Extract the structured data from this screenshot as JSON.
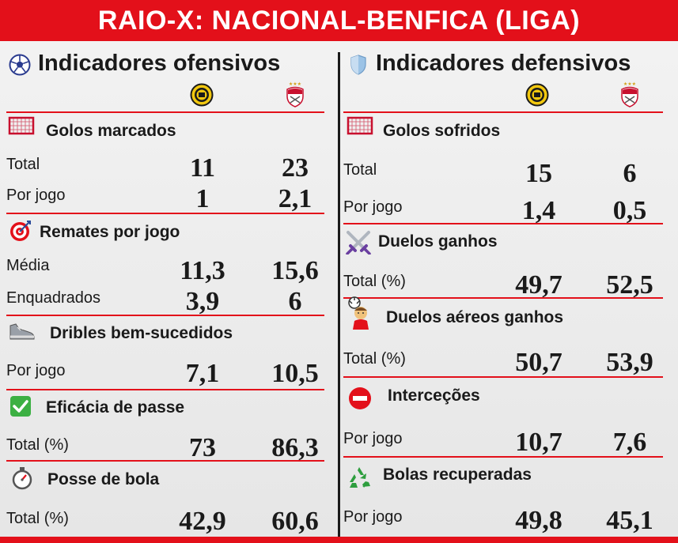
{
  "title": "RAIO-X: NACIONAL-BENFICA (LIGA)",
  "colors": {
    "accent": "#e3101a",
    "text": "#1a1a1a"
  },
  "left": {
    "title": "Indicadores ofensivos",
    "icon": "soccer-ball-icon",
    "sections": [
      {
        "title": "Golos marcados",
        "icon": "goal-net-icon",
        "rows": [
          {
            "label": "Total",
            "nacional": "11",
            "benfica": "23"
          },
          {
            "label": "Por jogo",
            "nacional": "1",
            "benfica": "2,1"
          }
        ]
      },
      {
        "title": "Remates por jogo",
        "icon": "target-icon",
        "rows": [
          {
            "label": "Média",
            "nacional": "11,3",
            "benfica": "15,6"
          },
          {
            "label": "Enquadrados",
            "nacional": "3,9",
            "benfica": "6"
          }
        ]
      },
      {
        "title": "Dribles bem-sucedidos",
        "icon": "sneaker-icon",
        "rows": [
          {
            "label": "Por jogo",
            "nacional": "7,1",
            "benfica": "10,5"
          }
        ]
      },
      {
        "title": "Eficácia de passe",
        "icon": "checkmark-icon",
        "rows": [
          {
            "label": "Total (%)",
            "nacional": "73",
            "benfica": "86,3"
          }
        ]
      },
      {
        "title": "Posse de bola",
        "icon": "stopwatch-icon",
        "rows": [
          {
            "label": "Total (%)",
            "nacional": "42,9",
            "benfica": "60,6"
          }
        ]
      }
    ]
  },
  "right": {
    "title": "Indicadores defensivos",
    "icon": "shield-icon",
    "sections": [
      {
        "title": "Golos sofridos",
        "icon": "goal-net-icon",
        "rows": [
          {
            "label": "Total",
            "nacional": "15",
            "benfica": "6"
          },
          {
            "label": "Por jogo",
            "nacional": "1,4",
            "benfica": "0,5"
          }
        ]
      },
      {
        "title": "Duelos ganhos",
        "icon": "crossed-swords-icon",
        "rows": [
          {
            "label": "Total (%)",
            "nacional": "49,7",
            "benfica": "52,5"
          }
        ]
      },
      {
        "title": "Duelos aéreos ganhos",
        "icon": "header-player-icon",
        "rows": [
          {
            "label": "Total (%)",
            "nacional": "50,7",
            "benfica": "53,9"
          }
        ]
      },
      {
        "title": "Interceções",
        "icon": "no-entry-icon",
        "rows": [
          {
            "label": "Por jogo",
            "nacional": "10,7",
            "benfica": "7,6"
          }
        ]
      },
      {
        "title": "Bolas recuperadas",
        "icon": "recycle-icon",
        "rows": [
          {
            "label": "Por jogo",
            "nacional": "49,8",
            "benfica": "45,1"
          }
        ]
      }
    ]
  }
}
